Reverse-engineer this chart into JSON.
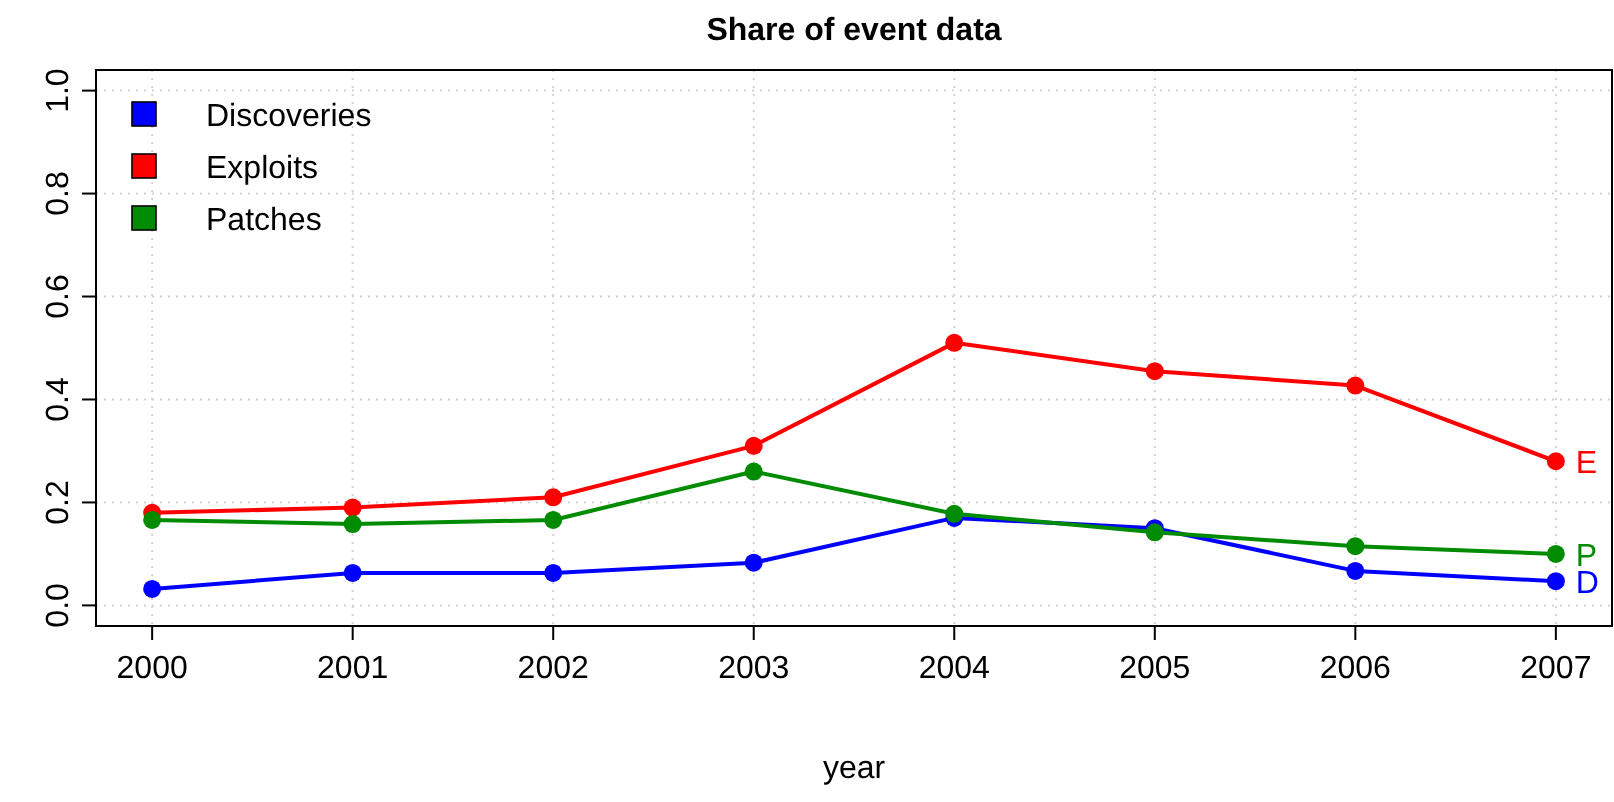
{
  "chart_data": {
    "type": "line",
    "title": "Share of event data",
    "xlabel": "year",
    "x": [
      2000,
      2001,
      2002,
      2003,
      2004,
      2005,
      2006,
      2007
    ],
    "series": [
      {
        "name": "Discoveries",
        "color": "#0000ff",
        "values": [
          0.032,
          0.063,
          0.063,
          0.083,
          0.17,
          0.15,
          0.067,
          0.047
        ]
      },
      {
        "name": "Exploits",
        "color": "#ff0000",
        "values": [
          0.18,
          0.19,
          0.21,
          0.31,
          0.51,
          0.455,
          0.427,
          0.28
        ]
      },
      {
        "name": "Patches",
        "color": "#008b00",
        "values": [
          0.166,
          0.158,
          0.166,
          0.26,
          0.178,
          0.142,
          0.115,
          0.1
        ]
      }
    ],
    "xlim": [
      1999.72,
      2007.28
    ],
    "ylim": [
      -0.04,
      1.04
    ],
    "xticks": [
      2000,
      2001,
      2002,
      2003,
      2004,
      2005,
      2006,
      2007
    ],
    "yticks": [
      {
        "value": 0,
        "label": "0.0"
      },
      {
        "value": 0.2,
        "label": "0.2"
      },
      {
        "value": 0.4,
        "label": "0.4"
      },
      {
        "value": 0.6,
        "label": "0.6"
      },
      {
        "value": 0.8,
        "label": "0.8"
      },
      {
        "value": 1,
        "label": "1.0"
      }
    ],
    "grid": true,
    "legend": "top left",
    "marker": "circle",
    "line_style": "solid",
    "annotations": [
      "D",
      "E",
      "P"
    ]
  }
}
